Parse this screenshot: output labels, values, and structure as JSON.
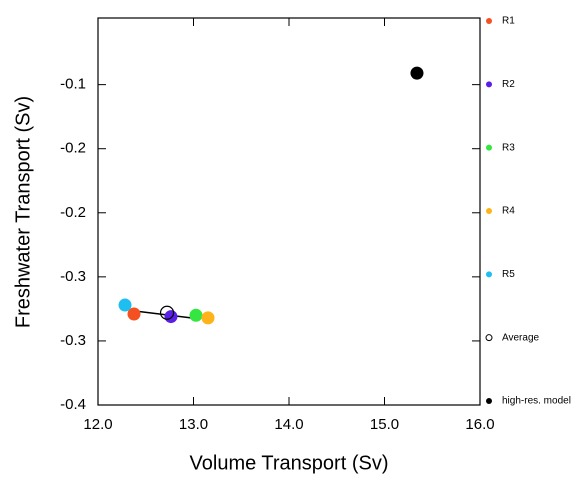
{
  "chart_data": {
    "type": "scatter",
    "x_label": "Volume Transport (Sv)",
    "y_label": "Freshwater Transport (Sv)",
    "xlim": [
      12.0,
      16.0
    ],
    "xticks": [
      {
        "value": 12,
        "label": "12.0"
      },
      {
        "value": 13,
        "label": "13.0"
      },
      {
        "value": 14,
        "label": "14.0"
      },
      {
        "value": 15,
        "label": "15.0"
      },
      {
        "value": 16,
        "label": "16.0"
      }
    ],
    "ylim": [
      -0.4,
      -0.098
    ],
    "yticks": [
      -0.4,
      {
        "value": -0.35,
        "label": "-0.3"
      },
      -0.3,
      {
        "value": -0.25,
        "label": "-0.2"
      },
      -0.2,
      {
        "value": -0.15,
        "label": "-0.1"
      }
    ],
    "legend": "right",
    "series": [
      {
        "name": "R1",
        "color": "#f55020",
        "filled": true,
        "x": [
          12.377
        ],
        "values": [
          -0.329
        ]
      },
      {
        "name": "R2",
        "color": "#5a1ee6",
        "filled": true,
        "x": [
          12.764
        ],
        "values": [
          -0.331
        ]
      },
      {
        "name": "R3",
        "color": "#33e640",
        "filled": true,
        "x": [
          13.026
        ],
        "values": [
          -0.33
        ]
      },
      {
        "name": "R4",
        "color": "#ffb31a",
        "filled": true,
        "x": [
          13.152
        ],
        "values": [
          -0.332
        ]
      },
      {
        "name": "R5",
        "color": "#1ebef0",
        "filled": true,
        "x": [
          12.283
        ],
        "values": [
          -0.322
        ]
      },
      {
        "name": "Average",
        "color": "#000000",
        "filled": false,
        "x": [
          12.723
        ],
        "values": [
          -0.328
        ]
      },
      {
        "name": "high-res. model",
        "color": "#000000",
        "filled": true,
        "x": [
          15.34
        ],
        "values": [
          -0.141
        ]
      }
    ]
  }
}
